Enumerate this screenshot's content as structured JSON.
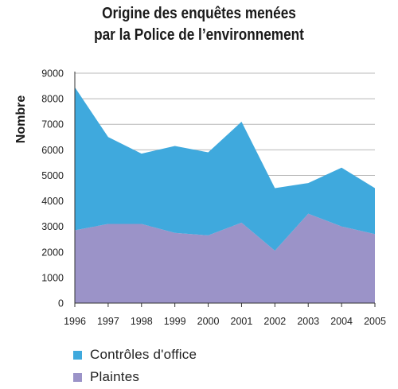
{
  "chart_data": {
    "type": "area",
    "stacked": true,
    "title_lines": [
      "Origine des enquêtes menées",
      "par la Police de l’environnement"
    ],
    "xlabel": "",
    "ylabel": "Nombre",
    "x": [
      "1996",
      "1997",
      "1998",
      "1999",
      "2000",
      "2001",
      "2002",
      "2003",
      "2004",
      "2005"
    ],
    "yticks": [
      "0",
      "1000",
      "2000",
      "3000",
      "4000",
      "5000",
      "6000",
      "7000",
      "8000",
      "9000"
    ],
    "ylim": [
      0,
      9000
    ],
    "grid": "horizontal",
    "legend_position": "bottom-left",
    "series": [
      {
        "name": "Plaintes",
        "color": "#9b93c8",
        "values": [
          2850,
          3100,
          3100,
          2750,
          2650,
          3150,
          2050,
          3500,
          3000,
          2700
        ]
      },
      {
        "name": "Contrôles d'office",
        "color": "#3fa9dd",
        "values": [
          5600,
          3400,
          2750,
          3400,
          3250,
          3950,
          2450,
          1200,
          2300,
          1800
        ]
      }
    ],
    "totals": [
      8450,
      6500,
      5850,
      6150,
      5900,
      7100,
      4500,
      4700,
      5300,
      4500
    ]
  },
  "legend": [
    {
      "label": "Contrôles d'office",
      "color": "#3fa9dd"
    },
    {
      "label": "Plaintes",
      "color": "#9b93c8"
    }
  ]
}
